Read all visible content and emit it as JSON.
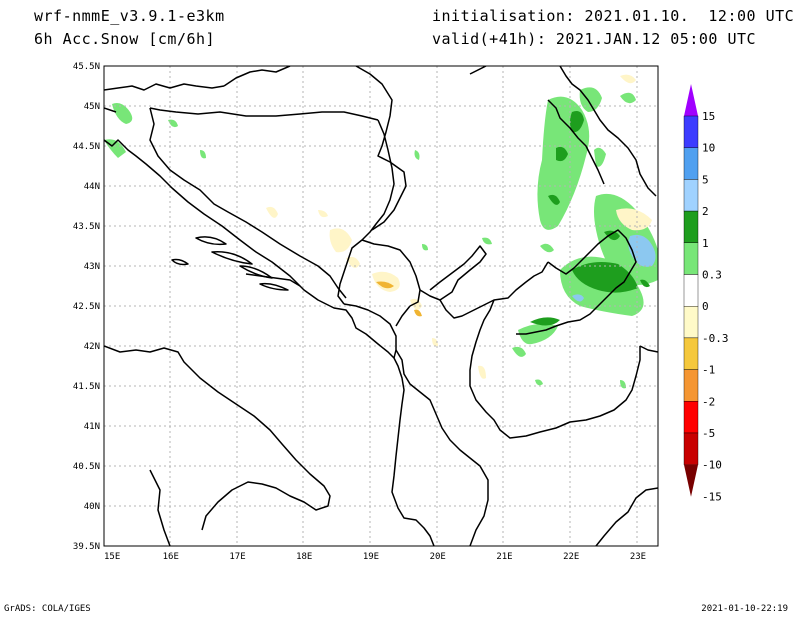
{
  "header": {
    "model": "wrf-nmmE_v3.9.1-e3km",
    "variable": "6h Acc.Snow [cm/6h]",
    "initialisation": "initialisation: 2021.01.10.  12:00 UTC",
    "valid": "valid(+41h): 2021.JAN.12 05:00 UTC"
  },
  "footer": {
    "left": "GrADS: COLA/IGES",
    "right": "2021-01-10-22:19"
  },
  "map": {
    "lon_ticks": [
      "15E",
      "16E",
      "17E",
      "18E",
      "19E",
      "20E",
      "21E",
      "22E",
      "23E"
    ],
    "lat_ticks": [
      "39.5N",
      "40N",
      "40.5N",
      "41N",
      "41.5N",
      "42N",
      "42.5N",
      "43N",
      "43.5N",
      "44N",
      "44.5N",
      "45N",
      "45.5N"
    ],
    "lon_range": [
      15,
      23.3
    ],
    "lat_range": [
      39.5,
      45.5
    ]
  },
  "colorbar": {
    "levels": [
      "15",
      "10",
      "5",
      "2",
      "1",
      "0.3",
      "0",
      "-0.3",
      "-1",
      "-2",
      "-5",
      "-10",
      "-15"
    ],
    "colors": [
      "#a000ff",
      "#3c3cff",
      "#50a0f0",
      "#a0d2ff",
      "#1e9e1e",
      "#78e678",
      "#ffffff",
      "#fffac8",
      "#f5c83c",
      "#f59632",
      "#ff0000",
      "#c80000",
      "#780000"
    ]
  },
  "legend_colors": {
    "light_green": "#78e678",
    "dark_green": "#1e9e1e",
    "light_blue": "#8cc8f0",
    "pale_yellow": "#fff5c8",
    "orange": "#f0b432"
  }
}
